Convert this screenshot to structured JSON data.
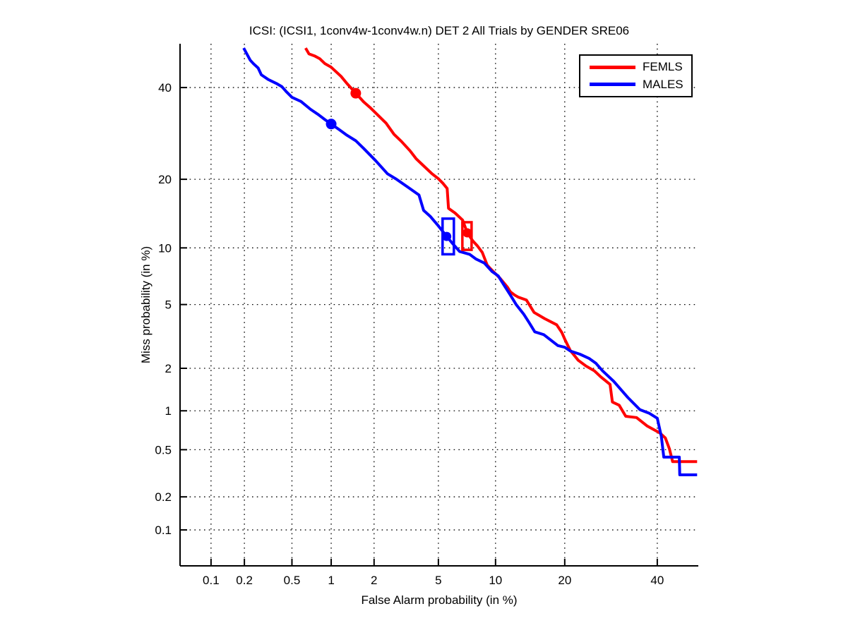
{
  "figure": {
    "title": "ICSI: (ICSI1, 1conv4w-1conv4w.n) DET 2 All Trials by GENDER SRE06",
    "background": "#ffffff"
  },
  "legend": {
    "items": [
      {
        "label": "FEMLS",
        "color": "#ff0000"
      },
      {
        "label": "MALES",
        "color": "#0000ff"
      }
    ]
  },
  "chart_data": {
    "type": "line",
    "subtype": "DET curve (normal-deviate / probit scaled axes, percent tick labels)",
    "title": "ICSI: (ICSI1, 1conv4w-1conv4w.n) DET 2 All Trials by GENDER SRE06",
    "xlabel": "False Alarm probability (in %)",
    "ylabel": "Miss probability (in %)",
    "grid": true,
    "grid_style": "dotted-black",
    "legend_position": "top-right",
    "xlim_pct": [
      0.0506,
      50.3
    ],
    "ylim_pct": [
      0.0449,
      51.1
    ],
    "x_ticks": {
      "labels": [
        "0.1",
        "0.2",
        "0.5",
        "1",
        "2",
        "5",
        "10",
        "20",
        "40"
      ],
      "values": [
        0.1,
        0.2,
        0.5,
        1,
        2,
        5,
        10,
        20,
        40
      ]
    },
    "y_ticks": {
      "labels": [
        "40",
        "20",
        "10",
        "5",
        "2",
        "1",
        "0.5",
        "0.2",
        "0.1"
      ],
      "values": [
        40,
        20,
        10,
        5,
        2,
        1,
        0.5,
        0.2,
        0.1
      ]
    },
    "axis_color": "#000000",
    "series": [
      {
        "name": "FEMLS",
        "color": "#ff0000",
        "width": 4,
        "points": [
          [
            0.64,
            50
          ],
          [
            0.68,
            48.5
          ],
          [
            0.75,
            48
          ],
          [
            0.82,
            47.3
          ],
          [
            0.9,
            46
          ],
          [
            1.0,
            45.1
          ],
          [
            1.18,
            42.8
          ],
          [
            1.3,
            41
          ],
          [
            1.5,
            38.6
          ],
          [
            1.7,
            36.5
          ],
          [
            1.9,
            35
          ],
          [
            2.1,
            33.5
          ],
          [
            2.4,
            31.5
          ],
          [
            2.7,
            29
          ],
          [
            3.0,
            27.5
          ],
          [
            3.4,
            25.5
          ],
          [
            3.7,
            23.9
          ],
          [
            4.1,
            22.5
          ],
          [
            4.6,
            21
          ],
          [
            5.0,
            20.1
          ],
          [
            5.3,
            19.3
          ],
          [
            5.6,
            18.4
          ],
          [
            5.7,
            15.2
          ],
          [
            6.2,
            14.5
          ],
          [
            6.8,
            13.5
          ],
          [
            7.2,
            11.8
          ],
          [
            7.7,
            10.8
          ],
          [
            8.1,
            10.26
          ],
          [
            8.6,
            9.5
          ],
          [
            9.1,
            8.2
          ],
          [
            9.5,
            7.8
          ],
          [
            10.5,
            7.0
          ],
          [
            11.4,
            6.25
          ],
          [
            11.75,
            5.9
          ],
          [
            12.3,
            5.66
          ],
          [
            12.8,
            5.5
          ],
          [
            13.9,
            5.3
          ],
          [
            15.0,
            4.5
          ],
          [
            16.6,
            4.14
          ],
          [
            18.6,
            3.8
          ],
          [
            19.5,
            3.4
          ],
          [
            20,
            3.1
          ],
          [
            21,
            2.62
          ],
          [
            22.5,
            2.26
          ],
          [
            24,
            2.07
          ],
          [
            25.7,
            1.92
          ],
          [
            27,
            1.75
          ],
          [
            29,
            1.55
          ],
          [
            29.5,
            1.16
          ],
          [
            31,
            1.1
          ],
          [
            32.5,
            0.91
          ],
          [
            35,
            0.89
          ],
          [
            37.5,
            0.77
          ],
          [
            40.6,
            0.68
          ],
          [
            42,
            0.62
          ],
          [
            43,
            0.51
          ],
          [
            43.8,
            0.4
          ],
          [
            50,
            0.4
          ]
        ]
      },
      {
        "name": "MALES",
        "color": "#0000ff",
        "width": 4,
        "points": [
          [
            0.197,
            50
          ],
          [
            0.21,
            48.5
          ],
          [
            0.225,
            46.9
          ],
          [
            0.24,
            46
          ],
          [
            0.263,
            44.9
          ],
          [
            0.28,
            43.2
          ],
          [
            0.32,
            42
          ],
          [
            0.375,
            41
          ],
          [
            0.415,
            40.2
          ],
          [
            0.45,
            39
          ],
          [
            0.5,
            37.6
          ],
          [
            0.59,
            36.6
          ],
          [
            0.7,
            34.7
          ],
          [
            0.8,
            33.5
          ],
          [
            0.9,
            32.3
          ],
          [
            1.0,
            31.3
          ],
          [
            1.15,
            30
          ],
          [
            1.3,
            28.8
          ],
          [
            1.5,
            27.6
          ],
          [
            1.7,
            26
          ],
          [
            2.05,
            23.5
          ],
          [
            2.45,
            21
          ],
          [
            2.8,
            20
          ],
          [
            3.3,
            18.6
          ],
          [
            3.85,
            17.3
          ],
          [
            4.1,
            14.9
          ],
          [
            4.5,
            14
          ],
          [
            5.0,
            12.7
          ],
          [
            5.57,
            11.35
          ],
          [
            6.0,
            10.5
          ],
          [
            6.55,
            9.6
          ],
          [
            7.4,
            9.3
          ],
          [
            8.0,
            8.8
          ],
          [
            8.8,
            8.4
          ],
          [
            9.6,
            7.6
          ],
          [
            10.3,
            7.2
          ],
          [
            11.0,
            6.4
          ],
          [
            11.75,
            5.66
          ],
          [
            12.5,
            5.0
          ],
          [
            13.5,
            4.4
          ],
          [
            14.3,
            3.9
          ],
          [
            15.1,
            3.44
          ],
          [
            16.5,
            3.3
          ],
          [
            18.8,
            2.82
          ],
          [
            20,
            2.75
          ],
          [
            21,
            2.6
          ],
          [
            22.8,
            2.48
          ],
          [
            24.6,
            2.33
          ],
          [
            26,
            2.16
          ],
          [
            27.4,
            1.92
          ],
          [
            29.8,
            1.63
          ],
          [
            31.2,
            1.45
          ],
          [
            33,
            1.25
          ],
          [
            35.8,
            1.02
          ],
          [
            38,
            0.96
          ],
          [
            40,
            0.88
          ],
          [
            41,
            0.64
          ],
          [
            41.6,
            0.435
          ],
          [
            45.5,
            0.435
          ],
          [
            45.6,
            0.31
          ],
          [
            50,
            0.31
          ]
        ]
      }
    ],
    "markers": [
      {
        "type": "dot",
        "series": "FEMLS",
        "color": "#ff0000",
        "fa": 1.5,
        "miss": 38.6,
        "r": 7.5
      },
      {
        "type": "dot",
        "series": "MALES",
        "color": "#0000ff",
        "fa": 1.0,
        "miss": 31.3,
        "r": 7.5
      },
      {
        "type": "box",
        "series": "MALES",
        "color": "#0000ff",
        "fa_range": [
          5.28,
          6.1
        ],
        "miss_range": [
          9.3,
          13.7
        ]
      },
      {
        "type": "dot",
        "series": "MALES",
        "color": "#0000ff",
        "fa": 5.57,
        "miss": 11.35,
        "r": 6.5
      },
      {
        "type": "box",
        "series": "FEMLS",
        "color": "#ff0000",
        "fa_range": [
          6.78,
          7.58
        ],
        "miss_range": [
          9.78,
          13.2
        ]
      },
      {
        "type": "dot",
        "series": "FEMLS",
        "color": "#ff0000",
        "fa": 7.2,
        "miss": 11.8,
        "r": 6.5
      }
    ]
  }
}
